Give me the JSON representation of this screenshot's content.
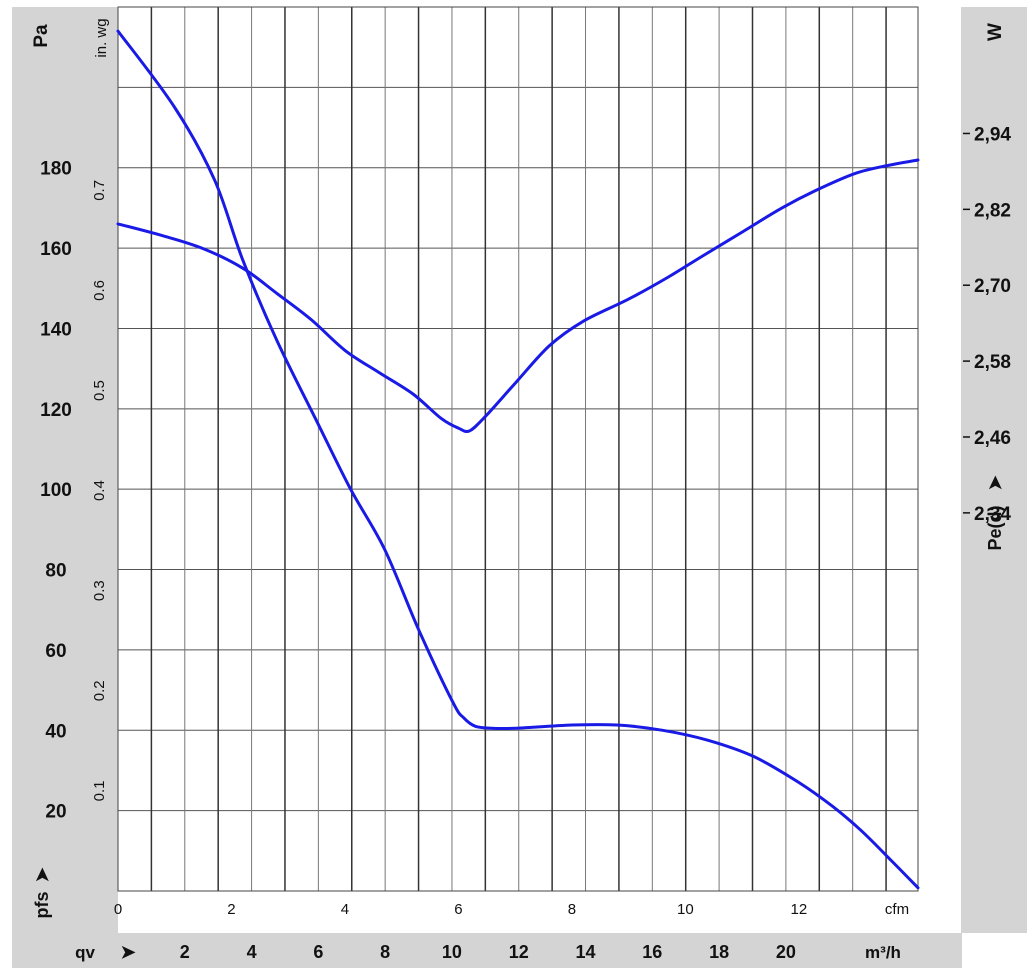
{
  "chart_data": {
    "type": "line",
    "title": "",
    "left_axis": {
      "label": "Pa",
      "arrow_label": "pfs",
      "ticks": [
        20,
        40,
        60,
        80,
        100,
        120,
        140,
        160,
        180
      ],
      "range": [
        0,
        220
      ]
    },
    "inner_axis": {
      "label": "in. wg",
      "ticks": [
        "0.1",
        "0.2",
        "0.3",
        "0.4",
        "0.5",
        "0.6",
        "0.7"
      ],
      "range": [
        0,
        0.8832
      ]
    },
    "right_axis": {
      "label": "W",
      "arrow_label": "Pe(d)",
      "ticks": [
        "2,34",
        "2,46",
        "2,58",
        "2,70",
        "2,82",
        "2,94"
      ],
      "range": [
        1.742,
        3.14
      ]
    },
    "x_axis_cfm": {
      "label": "cfm",
      "ticks": [
        "0",
        "2",
        "4",
        "6",
        "8",
        "10",
        "12"
      ],
      "range": [
        0,
        14.1
      ]
    },
    "x_axis_m3h": {
      "label": "m³/h",
      "prefix": "qv",
      "ticks": [
        "2",
        "4",
        "6",
        "8",
        "10",
        "12",
        "14",
        "16",
        "18",
        "20"
      ]
    },
    "grid": true,
    "series": [
      {
        "axis": "left",
        "x_cfm": [
          0,
          1.0,
          1.7,
          2.2,
          2.8,
          3.5,
          4.1,
          4.7,
          5.3,
          5.9,
          6.1,
          6.3,
          6.6,
          7.0,
          8.0,
          8.8,
          9.6,
          10.4,
          11.2,
          12.0,
          12.6,
          13.1,
          13.6,
          14.1
        ],
        "y": [
          214,
          195,
          177,
          157,
          137,
          117,
          100,
          85,
          65,
          47,
          43,
          41,
          40.5,
          40.5,
          41.3,
          41.3,
          40,
          37.5,
          33.5,
          27,
          21,
          15,
          8,
          0.8
        ]
      },
      {
        "axis": "right",
        "x_cfm": [
          0,
          0.8,
          1.5,
          2.2,
          2.8,
          3.4,
          4.0,
          4.6,
          5.2,
          5.7,
          6.0,
          6.2,
          6.5,
          7.0,
          7.6,
          8.2,
          9.0,
          9.7,
          10.3,
          11.0,
          11.7,
          12.3,
          13.0,
          13.6,
          14.1
        ],
        "y": [
          2.797,
          2.778,
          2.758,
          2.727,
          2.687,
          2.646,
          2.597,
          2.562,
          2.528,
          2.489,
          2.474,
          2.47,
          2.495,
          2.545,
          2.604,
          2.643,
          2.678,
          2.713,
          2.746,
          2.784,
          2.822,
          2.85,
          2.877,
          2.89,
          2.898
        ]
      }
    ]
  }
}
